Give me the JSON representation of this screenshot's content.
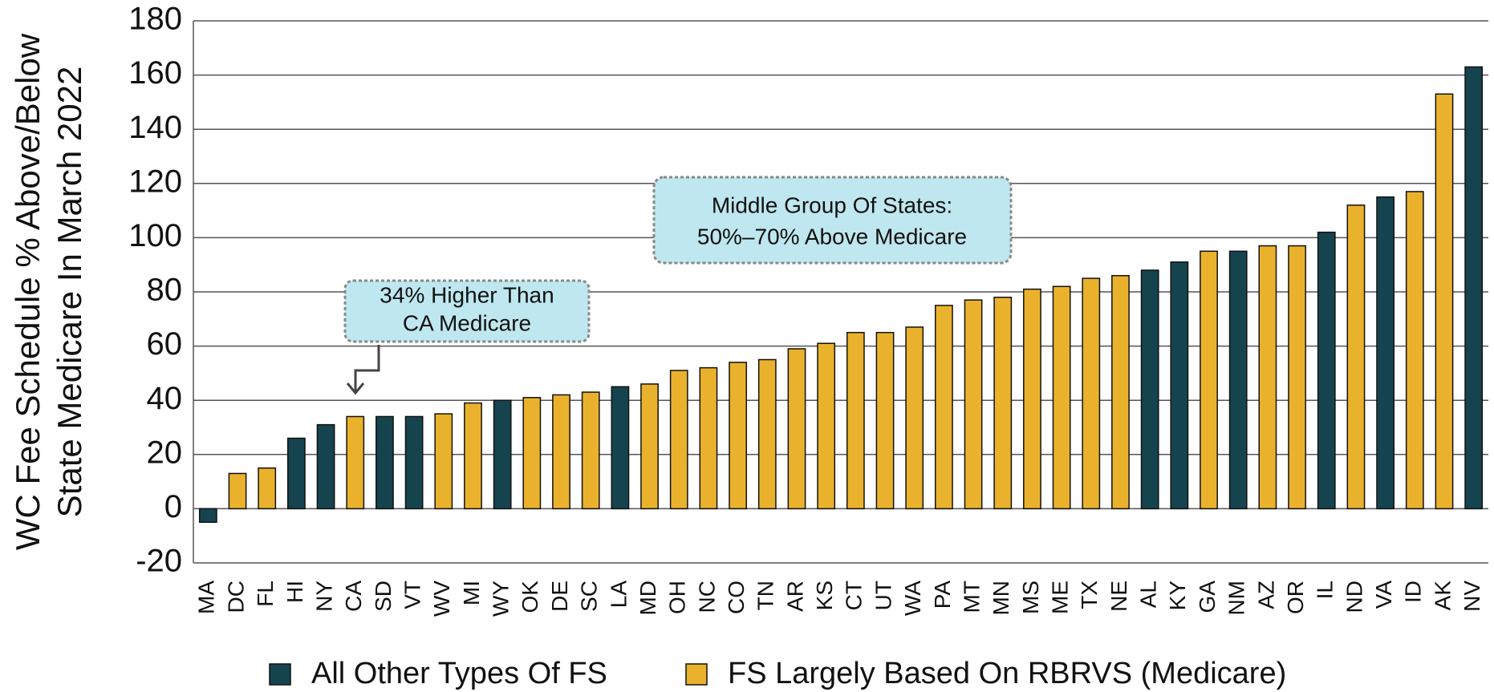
{
  "chart_data": {
    "type": "bar",
    "y_label": [
      "WC Fee Schedule % Above/Below",
      "State Medicare In March 2022"
    ],
    "categories": [
      "MA",
      "DC",
      "FL",
      "HI",
      "NY",
      "CA",
      "SD",
      "VT",
      "WV",
      "MI",
      "WY",
      "OK",
      "DE",
      "SC",
      "LA",
      "MD",
      "OH",
      "NC",
      "CO",
      "TN",
      "AR",
      "KS",
      "CT",
      "UT",
      "WA",
      "PA",
      "MT",
      "MN",
      "MS",
      "ME",
      "TX",
      "NE",
      "AL",
      "KY",
      "GA",
      "NM",
      "AZ",
      "OR",
      "IL",
      "ND",
      "VA",
      "ID",
      "AK",
      "NV"
    ],
    "series": [
      {
        "name": "All Other Types Of FS",
        "color": "#15444f",
        "values": [
          -5,
          null,
          null,
          26,
          31,
          null,
          34,
          34,
          null,
          null,
          40,
          null,
          null,
          null,
          45,
          null,
          null,
          null,
          null,
          null,
          null,
          null,
          null,
          null,
          null,
          null,
          null,
          null,
          null,
          null,
          null,
          null,
          88,
          91,
          null,
          95,
          null,
          null,
          102,
          null,
          115,
          null,
          null,
          163
        ]
      },
      {
        "name": "FS Largely Based On RBRVS (Medicare)",
        "color": "#eab22c",
        "values": [
          null,
          13,
          15,
          null,
          null,
          34,
          null,
          null,
          35,
          39,
          null,
          41,
          42,
          43,
          null,
          46,
          51,
          52,
          54,
          55,
          59,
          61,
          65,
          65,
          67,
          75,
          77,
          78,
          81,
          82,
          85,
          86,
          null,
          null,
          95,
          null,
          97,
          97,
          null,
          112,
          null,
          117,
          153,
          null
        ]
      }
    ],
    "ylim": [
      -20,
      180
    ],
    "yticks": [
      -20,
      0,
      20,
      40,
      60,
      80,
      100,
      120,
      140,
      160,
      180
    ],
    "grid": true,
    "annotations": [
      [
        "34% Higher Than",
        "CA Medicare"
      ],
      [
        "Middle Group Of States:",
        "50%–70% Above Medicare"
      ]
    ],
    "legend": "bottom"
  }
}
